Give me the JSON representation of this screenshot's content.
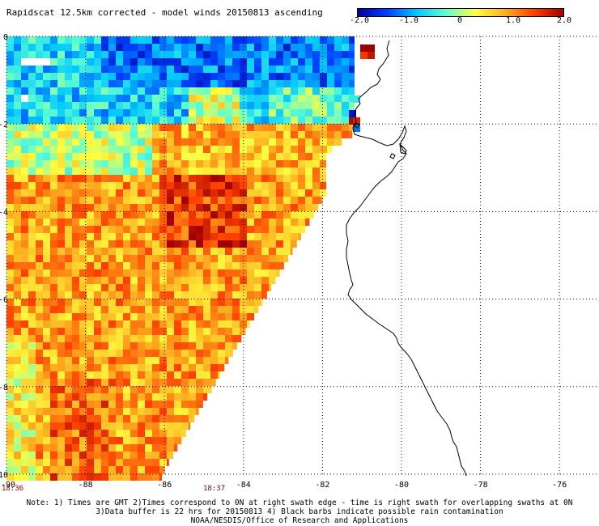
{
  "title": "Rapidscat 12.5km corrected - model winds 20150813 ascending",
  "colorbar": {
    "labels": [
      "-2.0",
      "-1.0",
      "0",
      "1.0",
      "2.0"
    ],
    "colors": [
      "#0000a0",
      "#0040ff",
      "#00c8ff",
      "#60ffd0",
      "#ffff40",
      "#ffb020",
      "#ff4000",
      "#a00000"
    ]
  },
  "map": {
    "lon_range": [
      -90,
      -75
    ],
    "lat_range": [
      -10,
      0
    ],
    "lon_ticks": [
      "-90",
      "-88",
      "-86",
      "-84",
      "-82",
      "-80",
      "-78",
      "-76"
    ],
    "lat_ticks": [
      "0",
      "-2",
      "-4",
      "-6",
      "-8",
      "-10"
    ],
    "gridlines": true
  },
  "swath_times": [
    {
      "label": "18:36"
    },
    {
      "label": "18:37"
    }
  ],
  "notes": [
    "Note: 1) Times are GMT 2)Times correspond to 0N at right swath edge - time is right swath for overlapping swaths at 0N",
    "3)Data buffer is 22 hrs for 20150813 4) Black barbs indicate possible rain contamination",
    "NOAA/NESDIS/Office of Research and Applications"
  ]
}
